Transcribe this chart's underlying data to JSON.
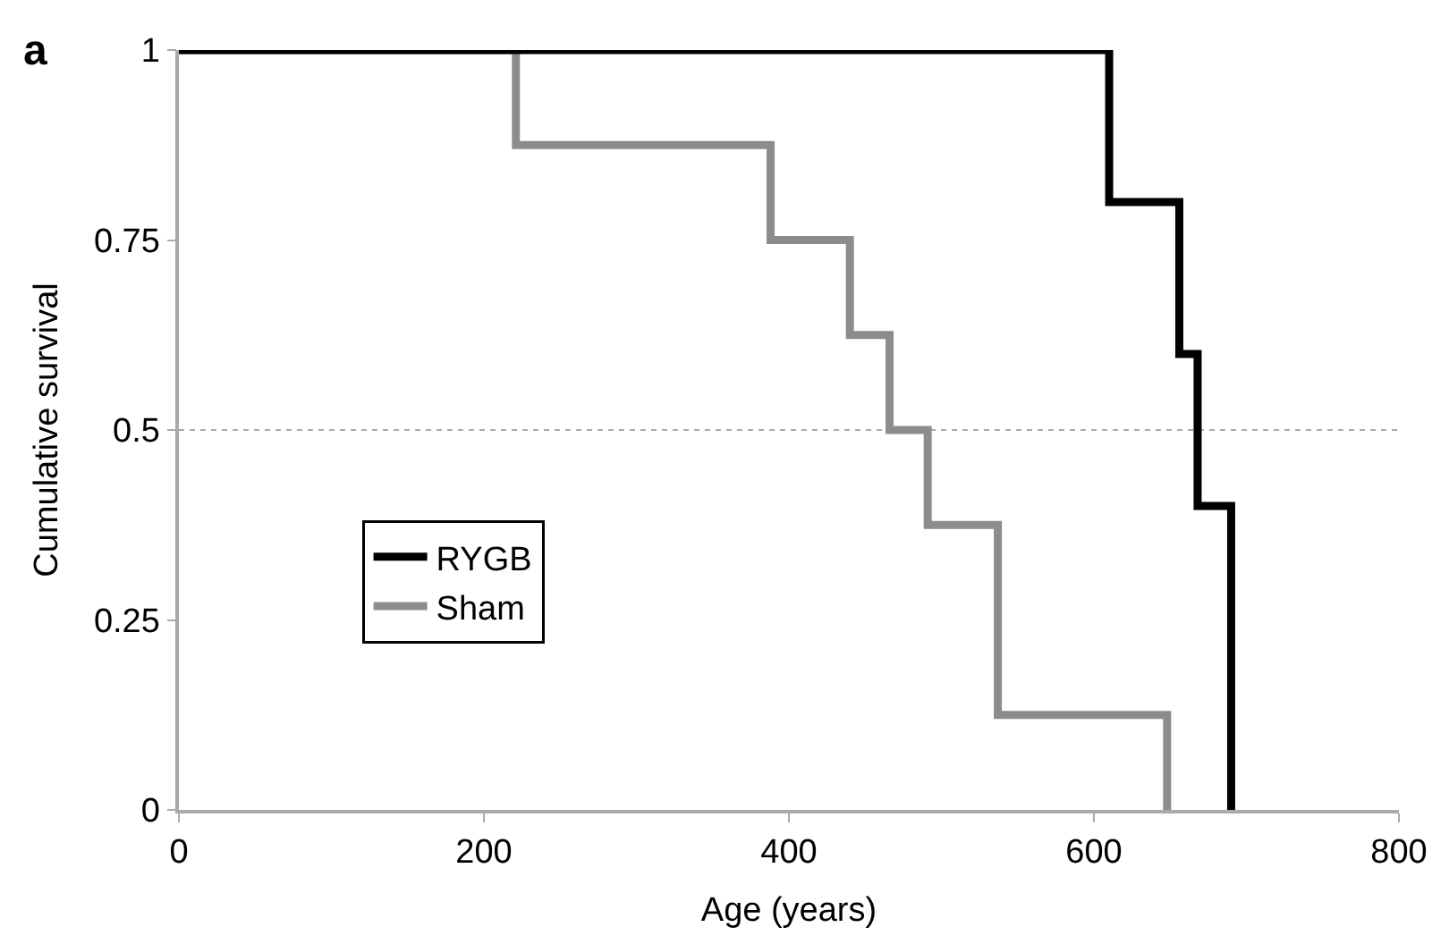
{
  "chart_data": {
    "type": "step",
    "xlabel": "Age (years)",
    "ylabel": "Cumulative survival",
    "annotations": [
      "a"
    ],
    "series": [
      {
        "name": "RYGB",
        "color": "#000000",
        "x": [
          0,
          610,
          656,
          668,
          690,
          690
        ],
        "values": [
          1,
          0.8,
          0.6,
          0.4,
          0,
          0
        ]
      },
      {
        "name": "Sham",
        "color": "#8c8c8c",
        "x": [
          0,
          221,
          388,
          440,
          466,
          491,
          537,
          648,
          648
        ],
        "values": [
          1,
          0.875,
          0.75,
          0.625,
          0.5,
          0.375,
          0.125,
          0,
          0
        ]
      }
    ],
    "xlim": [
      0,
      800
    ],
    "xticks": [
      0,
      200,
      400,
      600,
      800
    ],
    "ylim": [
      0,
      1
    ],
    "yticks": [
      0,
      0.25,
      0.5,
      0.75,
      1
    ],
    "ref_lines": [
      {
        "axis": "y",
        "value": 0.5,
        "color": "#aaaaaa",
        "line_style": "dotted"
      }
    ],
    "grid": false,
    "legend": "center left",
    "line_style": "solid",
    "marker": "none"
  }
}
